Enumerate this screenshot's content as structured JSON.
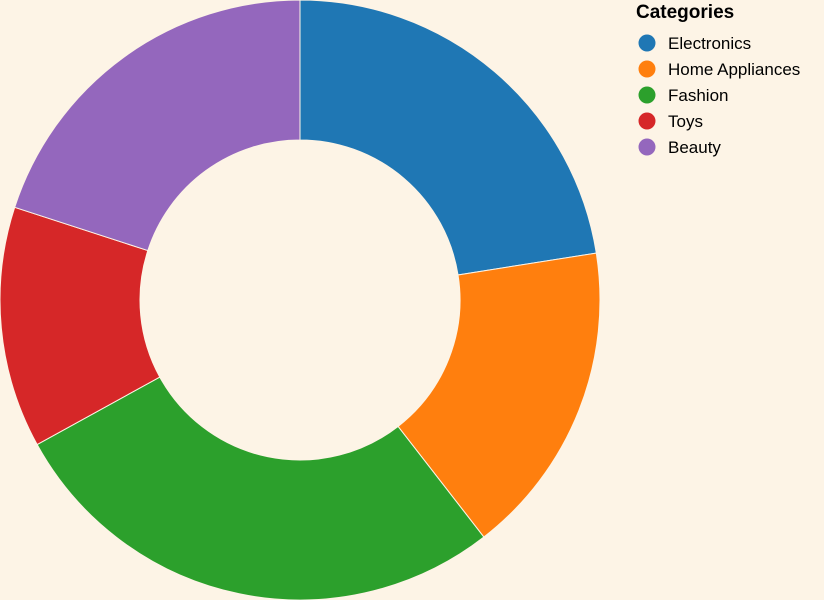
{
  "chart_data": {
    "type": "pie",
    "donut": true,
    "title": "",
    "categories": [
      "Electronics",
      "Home Appliances",
      "Fashion",
      "Toys",
      "Beauty"
    ],
    "values": [
      22.5,
      17.0,
      27.5,
      13.0,
      20.0
    ],
    "colors": [
      "#1f77b4",
      "#ff7f0e",
      "#2ca02c",
      "#d62728",
      "#9467bd"
    ],
    "legend": {
      "title": "Categories",
      "placement": "top-right"
    }
  }
}
